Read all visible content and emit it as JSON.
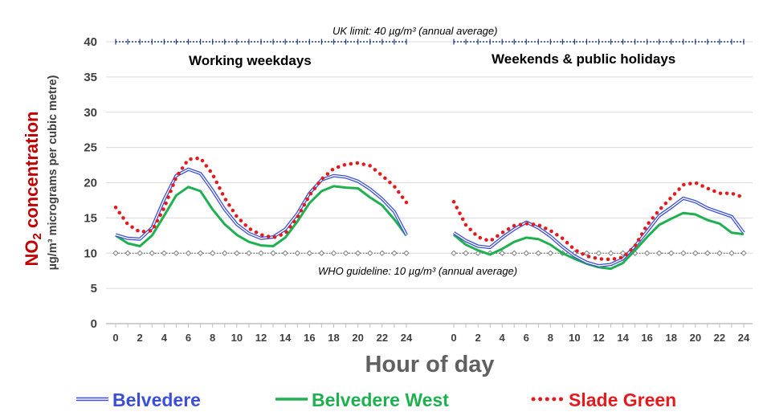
{
  "colors": {
    "belvedere": "#3b4fd8",
    "belvedere_west": "#1fb04f",
    "slade_green": "#e41a1c",
    "ylabel_main": "#c00000",
    "ylabel_sub": "#404040",
    "axis_text": "#404040",
    "grid": "#d9d9d9",
    "uk_line": "#1f3d7a"
  },
  "chart_data": {
    "type": "line",
    "ylabel_main": "NO",
    "ylabel_main_sub": "2",
    "ylabel_main_suffix": " concentration",
    "ylabel_sub": "µg/m³ micrograms per cubic metre)",
    "xlabel": "Hour of day",
    "ylim": [
      0,
      40
    ],
    "yticks": [
      0,
      5,
      10,
      15,
      20,
      25,
      30,
      35,
      40
    ],
    "grid": true,
    "legend_position": "bottom",
    "reference_lines": [
      {
        "value": 40,
        "label": "UK limit:  40 µg/m³ (annual average)",
        "style": "dark-cross"
      },
      {
        "value": 10,
        "label": "WHO guideline:  10 µg/m³ (annual average)",
        "style": "grey-diamond"
      }
    ],
    "legend": [
      {
        "key": "belvedere",
        "label": "Belvedere",
        "style": "double"
      },
      {
        "key": "belvedere_west",
        "label": "Belvedere West",
        "style": "solid"
      },
      {
        "key": "slade_green",
        "label": "Slade Green",
        "style": "dotted"
      }
    ],
    "panels": [
      {
        "title": "Working weekdays",
        "x": [
          0,
          1,
          2,
          3,
          4,
          5,
          6,
          7,
          8,
          9,
          10,
          11,
          12,
          13,
          14,
          15,
          16,
          17,
          18,
          19,
          20,
          21,
          22,
          23,
          24
        ],
        "xticks": [
          0,
          2,
          4,
          6,
          8,
          10,
          12,
          14,
          16,
          18,
          20,
          22,
          24
        ],
        "series": {
          "belvedere": [
            12.6,
            12.1,
            12.0,
            13.6,
            17.6,
            21.0,
            21.9,
            21.3,
            18.9,
            16.2,
            14.1,
            12.8,
            12.1,
            12.3,
            13.4,
            15.6,
            18.5,
            20.4,
            21.0,
            20.8,
            20.2,
            19.1,
            17.7,
            15.9,
            12.6
          ],
          "belvedere_west": [
            12.5,
            11.4,
            11.0,
            12.5,
            15.3,
            18.2,
            19.4,
            18.8,
            16.2,
            14.1,
            12.6,
            11.6,
            11.1,
            11.0,
            12.2,
            14.5,
            17.1,
            18.8,
            19.5,
            19.3,
            19.2,
            17.9,
            16.8,
            14.8,
            12.5
          ],
          "slade_green": [
            16.5,
            14.1,
            13.0,
            13.2,
            16.4,
            20.8,
            23.3,
            23.5,
            21.2,
            17.8,
            15.2,
            13.5,
            12.6,
            12.2,
            12.8,
            15.1,
            18.2,
            20.5,
            22.0,
            22.6,
            22.8,
            22.4,
            21.0,
            19.5,
            17.2
          ]
        }
      },
      {
        "title": "Weekends & public holidays",
        "x": [
          0,
          1,
          2,
          3,
          4,
          5,
          6,
          7,
          8,
          9,
          10,
          11,
          12,
          13,
          14,
          15,
          16,
          17,
          18,
          19,
          20,
          21,
          22,
          23,
          24
        ],
        "xticks": [
          0,
          2,
          4,
          6,
          8,
          10,
          12,
          14,
          16,
          18,
          20,
          22,
          24
        ],
        "series": {
          "belvedere": [
            12.9,
            11.8,
            11.0,
            10.8,
            12.2,
            13.4,
            14.4,
            13.6,
            12.4,
            10.9,
            9.6,
            8.7,
            8.2,
            8.4,
            9.2,
            11.0,
            13.1,
            15.3,
            16.5,
            17.8,
            17.3,
            16.4,
            15.8,
            15.2,
            12.9
          ],
          "belvedere_west": [
            12.6,
            11.2,
            10.4,
            9.8,
            10.6,
            11.6,
            12.2,
            12.0,
            11.2,
            10.0,
            9.2,
            8.5,
            8.0,
            7.8,
            8.6,
            10.4,
            12.3,
            14.0,
            14.9,
            15.7,
            15.5,
            14.7,
            14.2,
            12.9,
            12.7
          ],
          "slade_green": [
            17.3,
            14.0,
            12.3,
            11.7,
            12.9,
            13.9,
            14.2,
            14.0,
            13.2,
            12.1,
            10.5,
            9.6,
            9.2,
            9.1,
            9.4,
            11.0,
            14.0,
            16.1,
            17.9,
            19.7,
            20.0,
            19.2,
            18.5,
            18.5,
            17.9
          ]
        }
      }
    ]
  }
}
